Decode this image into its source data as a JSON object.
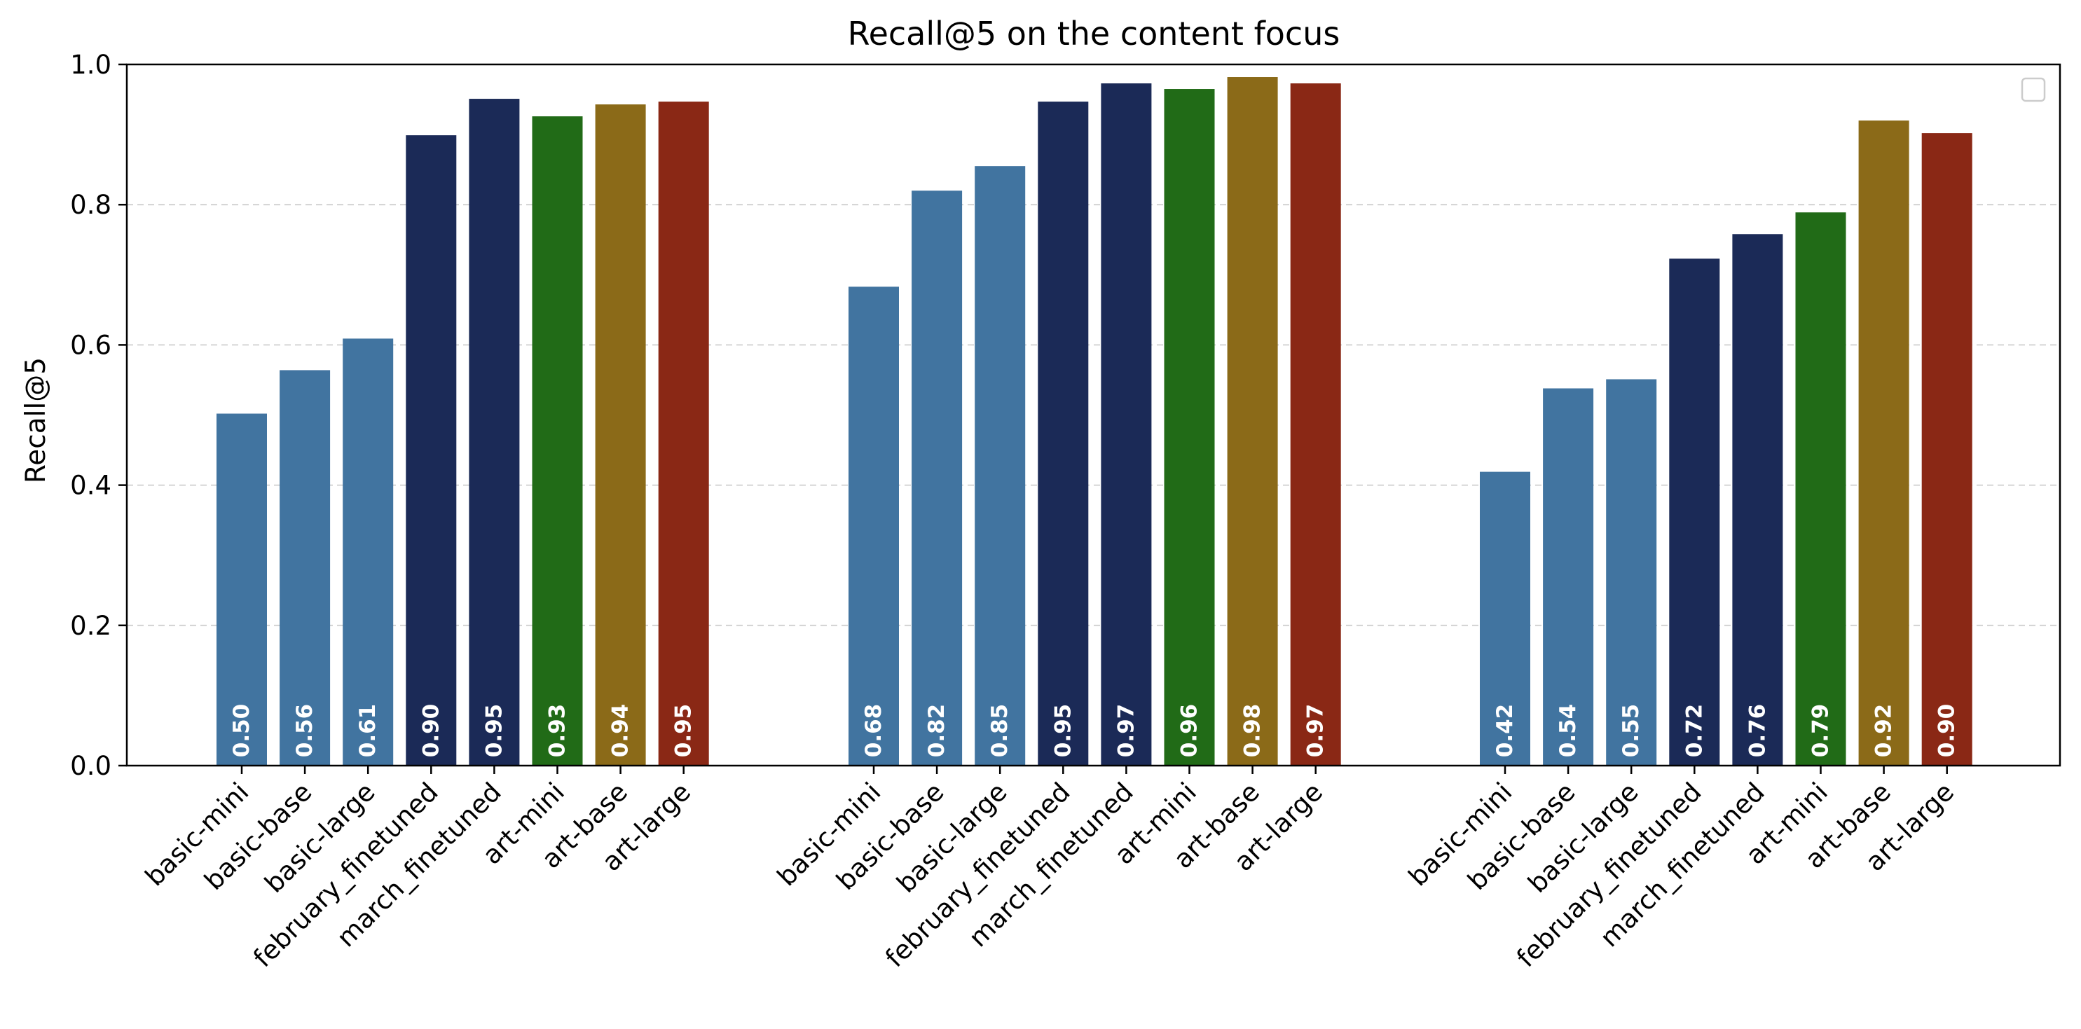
{
  "chart_data": {
    "type": "bar",
    "title": "Recall@5 on the content focus",
    "xlabel": "",
    "ylabel": "Recall@5",
    "ylim": [
      0,
      1.0
    ],
    "yticks": [
      "0.0",
      "0.2",
      "0.4",
      "0.6",
      "0.8",
      "1.0"
    ],
    "grid": "horizontal dashed",
    "legend": "top-right (empty)",
    "categories": [
      "basic-mini",
      "basic-base",
      "basic-large",
      "february_finetuned",
      "march_finetuned",
      "art-mini",
      "art-base",
      "art-large"
    ],
    "category_colors": [
      "#4174a0",
      "#4174a0",
      "#4174a0",
      "#1b2a57",
      "#1b2a57",
      "#216b17",
      "#8b6a18",
      "#8a2815"
    ],
    "groups": [
      {
        "values": [
          0.502,
          0.564,
          0.609,
          0.899,
          0.951,
          0.926,
          0.943,
          0.947
        ],
        "labels": [
          "0.50",
          "0.56",
          "0.61",
          "0.90",
          "0.95",
          "0.93",
          "0.94",
          "0.95"
        ]
      },
      {
        "values": [
          0.683,
          0.82,
          0.855,
          0.947,
          0.973,
          0.965,
          0.982,
          0.973
        ],
        "labels": [
          "0.68",
          "0.82",
          "0.85",
          "0.95",
          "0.97",
          "0.96",
          "0.98",
          "0.97"
        ]
      },
      {
        "values": [
          0.419,
          0.538,
          0.551,
          0.723,
          0.758,
          0.789,
          0.92,
          0.902
        ],
        "labels": [
          "0.42",
          "0.54",
          "0.55",
          "0.72",
          "0.76",
          "0.79",
          "0.92",
          "0.90"
        ]
      }
    ]
  }
}
